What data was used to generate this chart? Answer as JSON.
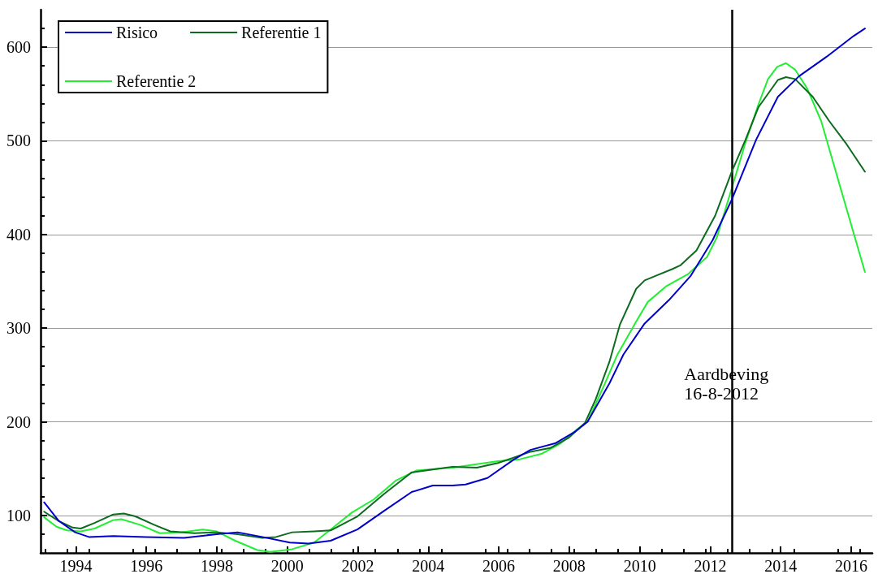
{
  "chart_data": {
    "type": "line",
    "xlim": [
      1993,
      2016.6
    ],
    "ylim": [
      60,
      640
    ],
    "xticks": [
      1994,
      1996,
      1998,
      2000,
      2002,
      2004,
      2006,
      2008,
      2010,
      2012,
      2014,
      2016
    ],
    "yticks": [
      100,
      200,
      300,
      400,
      500,
      600
    ],
    "grid": "y",
    "legend": "top left",
    "marker": "none",
    "line_style": "solid",
    "ref_lines": [
      {
        "axis": "x",
        "value": 2012.62,
        "label": "Aardbeving\n16-8-2012",
        "color": "#000000"
      }
    ],
    "series": [
      {
        "name": "Risico",
        "color": "#0000cc",
        "x": [
          1993.1,
          1993.52,
          1993.98,
          1994.37,
          1995.06,
          1995.99,
          1997.07,
          1997.99,
          1998.59,
          1999.29,
          2000.07,
          2000.6,
          2001.23,
          2001.99,
          2002.75,
          2003.53,
          2004.13,
          2004.69,
          2005.06,
          2005.68,
          2006.44,
          2006.9,
          2007.6,
          2008.15,
          2008.52,
          2009.14,
          2009.54,
          2010.14,
          2010.83,
          2011.45,
          2012.07,
          2012.61,
          2013.3,
          2013.92,
          2014.52,
          2015.31,
          2016.07,
          2016.39
        ],
        "values": [
          114,
          94,
          82,
          77,
          78,
          77,
          76,
          80,
          82,
          77,
          71,
          70,
          73,
          85,
          105,
          125,
          132,
          132,
          133,
          140,
          160,
          170,
          177,
          189,
          200,
          241,
          272,
          305,
          330,
          356,
          394,
          437,
          501,
          547,
          569,
          590,
          612,
          620
        ]
      },
      {
        "name": "Referentie 1",
        "color": "#0b6b1e",
        "x": [
          1993.1,
          1993.52,
          1993.91,
          1994.14,
          1994.53,
          1995.06,
          1995.36,
          1995.69,
          1996.22,
          1996.68,
          1997.37,
          1997.99,
          1998.59,
          1999.29,
          1999.68,
          2000.14,
          2000.76,
          2001.23,
          2001.99,
          2002.75,
          2003.53,
          2004.13,
          2004.69,
          2005.38,
          2005.98,
          2006.44,
          2006.9,
          2007.46,
          2007.99,
          2008.45,
          2008.75,
          2009.14,
          2009.44,
          2009.9,
          2010.14,
          2010.46,
          2010.92,
          2011.15,
          2011.61,
          2012.14,
          2012.61,
          2013.0,
          2013.37,
          2013.92,
          2014.15,
          2014.41,
          2014.91,
          2015.38,
          2015.84,
          2016.39
        ],
        "values": [
          104,
          94,
          87,
          86,
          92,
          101,
          102,
          99,
          90,
          83,
          81,
          82,
          80,
          76,
          77,
          82,
          83,
          84,
          99,
          123,
          146,
          149,
          152,
          151,
          156,
          162,
          168,
          172,
          183,
          199,
          224,
          264,
          304,
          342,
          351,
          356,
          363,
          367,
          383,
          420,
          467,
          501,
          536,
          565,
          568,
          566,
          547,
          521,
          498,
          467
        ]
      },
      {
        "name": "Referentie 2",
        "color": "#22ee33",
        "x": [
          1993.1,
          1993.45,
          1993.75,
          1994.14,
          1994.53,
          1995.06,
          1995.29,
          1995.82,
          1996.38,
          1996.98,
          1997.6,
          1997.99,
          1998.52,
          1999.15,
          1999.52,
          2000.14,
          2000.76,
          2001.23,
          2001.83,
          2002.45,
          2003.07,
          2003.67,
          2004.69,
          2005.98,
          2006.6,
          2007.23,
          2007.76,
          2008.22,
          2008.52,
          2008.98,
          2009.37,
          2009.9,
          2010.23,
          2010.76,
          2011.38,
          2011.91,
          2012.19,
          2012.61,
          2013.0,
          2013.37,
          2013.64,
          2013.9,
          2014.15,
          2014.41,
          2014.75,
          2015.15,
          2015.68,
          2016.39
        ],
        "values": [
          98,
          88,
          84,
          83,
          86,
          95,
          96,
          90,
          81,
          82,
          85,
          83,
          73,
          63,
          61,
          64,
          71,
          85,
          103,
          117,
          137,
          148,
          151,
          158,
          160,
          166,
          177,
          192,
          200,
          238,
          272,
          307,
          328,
          345,
          358,
          376,
          397,
          449,
          498,
          539,
          566,
          579,
          583,
          576,
          556,
          521,
          452,
          360
        ]
      }
    ]
  }
}
